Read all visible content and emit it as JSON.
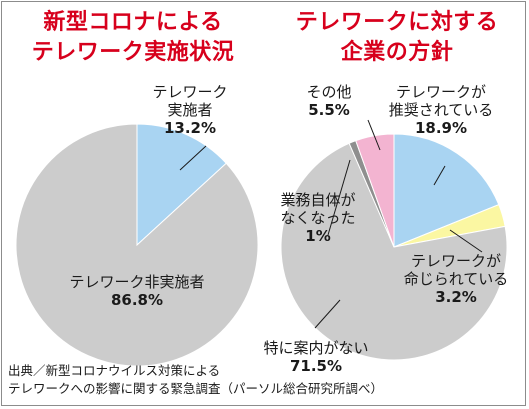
{
  "chart_data": [
    {
      "type": "pie",
      "title": [
        "新型コロナによる",
        "テレワーク実施状況"
      ],
      "slices": [
        {
          "label": [
            "テレワーク",
            "実施者"
          ],
          "value": 13.2,
          "value_label": "13.2%",
          "color": "#a9d4f2"
        },
        {
          "label": [
            "テレワーク非実施者"
          ],
          "value": 86.8,
          "value_label": "86.8%",
          "color": "#cccccc"
        }
      ]
    },
    {
      "type": "pie",
      "title": [
        "テレワークに対する",
        "企業の方針"
      ],
      "slices": [
        {
          "label": [
            "テレワークが",
            "推奨されている"
          ],
          "value": 18.9,
          "value_label": "18.9%",
          "color": "#a9d4f2"
        },
        {
          "label": [
            "テレワークが",
            "命じられている"
          ],
          "value": 3.2,
          "value_label": "3.2%",
          "color": "#fbf7a2"
        },
        {
          "label": [
            "特に案内がない"
          ],
          "value": 71.5,
          "value_label": "71.5%",
          "color": "#cccccc"
        },
        {
          "label": [
            "業務自体が",
            "なくなった"
          ],
          "value": 1,
          "value_label": "1%",
          "color": "#8f8f8f"
        },
        {
          "label": [
            "その他"
          ],
          "value": 5.5,
          "value_label": "5.5%",
          "color": "#f3b4d1"
        }
      ]
    }
  ],
  "source": [
    "出典／新型コロナウイルス対策による",
    "テレワークへの影響に関する緊急調査（パーソル総合研究所調べ）"
  ]
}
